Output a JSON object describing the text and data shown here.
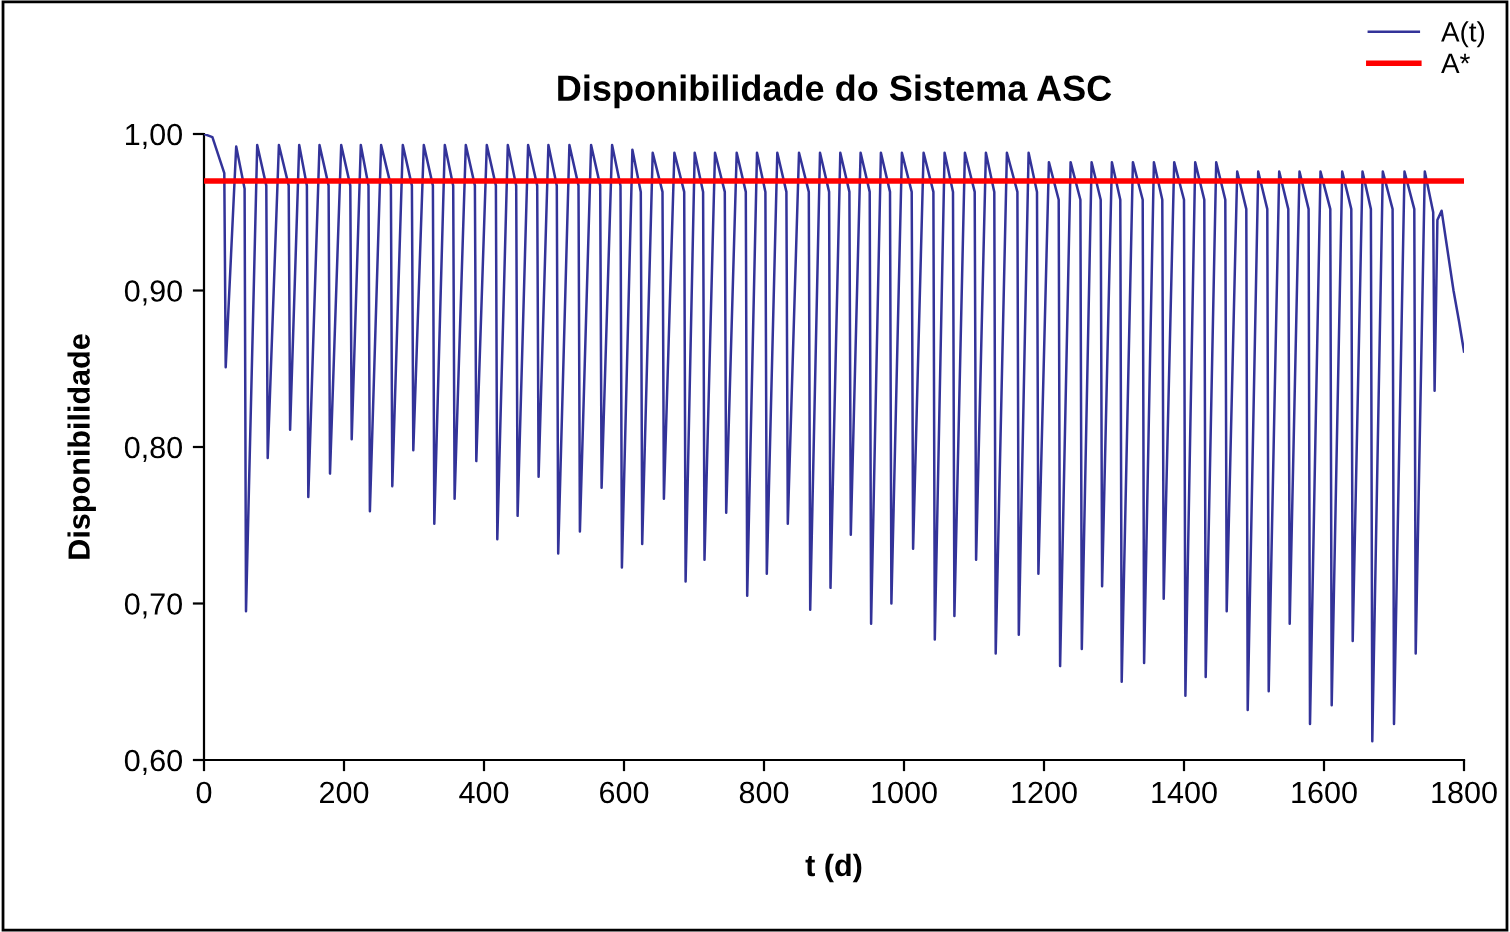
{
  "chart_data": {
    "type": "line",
    "title": "Disponibilidade do Sistema ASC",
    "xlabel": "t (d)",
    "ylabel": "Disponibilidade",
    "xlim": [
      0,
      1800
    ],
    "xticks": [
      0,
      200,
      400,
      600,
      800,
      1000,
      1200,
      1400,
      1600,
      1800
    ],
    "ylim": [
      0.6,
      1.0
    ],
    "yticks": [
      {
        "value": 0.6,
        "label": "0,60"
      },
      {
        "value": 0.7,
        "label": "0,70"
      },
      {
        "value": 0.8,
        "label": "0,80"
      },
      {
        "value": 0.9,
        "label": "0,90"
      },
      {
        "value": 1.0,
        "label": "1,00"
      }
    ],
    "grid": false,
    "legend": "top right",
    "marker": "none",
    "line_style": "solid",
    "series": [
      {
        "name": "A(t)",
        "color": "#333399",
        "x": [
          0,
          12,
          29,
          31,
          46,
          58,
          60,
          76,
          89,
          91,
          107,
          121,
          123,
          136,
          147,
          149,
          165,
          178,
          180,
          196,
          209,
          211,
          224,
          235,
          237,
          253,
          267,
          269,
          284,
          297,
          299,
          314,
          327,
          329,
          344,
          356,
          358,
          374,
          387,
          389,
          404,
          417,
          419,
          434,
          446,
          448,
          463,
          476,
          478,
          492,
          504,
          506,
          522,
          535,
          537,
          553,
          566,
          568,
          583,
          595,
          597,
          612,
          624,
          626,
          641,
          655,
          657,
          672,
          686,
          688,
          701,
          713,
          715,
          730,
          744,
          746,
          761,
          774,
          776,
          790,
          802,
          804,
          819,
          832,
          834,
          850,
          864,
          866,
          880,
          893,
          895,
          909,
          922,
          924,
          938,
          951,
          953,
          967,
          980,
          982,
          997,
          1011,
          1013,
          1028,
          1042,
          1044,
          1058,
          1070,
          1072,
          1087,
          1101,
          1103,
          1117,
          1129,
          1131,
          1147,
          1162,
          1164,
          1178,
          1190,
          1192,
          1207,
          1221,
          1223,
          1238,
          1252,
          1254,
          1268,
          1281,
          1283,
          1297,
          1309,
          1311,
          1327,
          1341,
          1343,
          1357,
          1369,
          1371,
          1386,
          1400,
          1402,
          1416,
          1429,
          1431,
          1446,
          1459,
          1461,
          1476,
          1489,
          1491,
          1506,
          1519,
          1521,
          1536,
          1549,
          1551,
          1565,
          1578,
          1580,
          1595,
          1609,
          1611,
          1626,
          1639,
          1641,
          1655,
          1667,
          1669,
          1684,
          1698,
          1700,
          1715,
          1729,
          1731,
          1744,
          1756,
          1758,
          1762,
          1768,
          1775,
          1785,
          1793,
          1800
        ],
        "values": [
          1.0,
          0.998,
          0.975,
          0.851,
          0.992,
          0.965,
          0.695,
          0.993,
          0.967,
          0.793,
          0.993,
          0.967,
          0.811,
          0.993,
          0.967,
          0.768,
          0.993,
          0.967,
          0.783,
          0.993,
          0.967,
          0.805,
          0.993,
          0.967,
          0.759,
          0.993,
          0.967,
          0.775,
          0.993,
          0.967,
          0.798,
          0.993,
          0.967,
          0.751,
          0.993,
          0.967,
          0.767,
          0.993,
          0.967,
          0.791,
          0.993,
          0.967,
          0.741,
          0.993,
          0.967,
          0.756,
          0.993,
          0.967,
          0.781,
          0.993,
          0.967,
          0.732,
          0.993,
          0.967,
          0.746,
          0.993,
          0.967,
          0.774,
          0.993,
          0.967,
          0.723,
          0.99,
          0.963,
          0.738,
          0.988,
          0.963,
          0.767,
          0.988,
          0.963,
          0.714,
          0.988,
          0.963,
          0.728,
          0.988,
          0.963,
          0.758,
          0.988,
          0.963,
          0.705,
          0.988,
          0.963,
          0.719,
          0.988,
          0.963,
          0.751,
          0.988,
          0.963,
          0.696,
          0.988,
          0.963,
          0.71,
          0.988,
          0.963,
          0.744,
          0.988,
          0.963,
          0.687,
          0.988,
          0.963,
          0.7,
          0.988,
          0.963,
          0.735,
          0.988,
          0.963,
          0.677,
          0.988,
          0.963,
          0.692,
          0.988,
          0.963,
          0.728,
          0.988,
          0.963,
          0.668,
          0.988,
          0.963,
          0.68,
          0.988,
          0.963,
          0.719,
          0.982,
          0.958,
          0.66,
          0.982,
          0.958,
          0.671,
          0.982,
          0.958,
          0.711,
          0.982,
          0.958,
          0.65,
          0.982,
          0.958,
          0.662,
          0.982,
          0.958,
          0.703,
          0.982,
          0.958,
          0.641,
          0.982,
          0.958,
          0.653,
          0.982,
          0.958,
          0.695,
          0.976,
          0.952,
          0.632,
          0.976,
          0.952,
          0.644,
          0.976,
          0.952,
          0.687,
          0.976,
          0.952,
          0.623,
          0.976,
          0.952,
          0.635,
          0.976,
          0.952,
          0.676,
          0.976,
          0.952,
          0.612,
          0.976,
          0.952,
          0.623,
          0.976,
          0.952,
          0.668,
          0.976,
          0.95,
          0.836,
          0.945,
          0.951,
          0.93,
          0.9,
          0.88,
          0.861
        ]
      },
      {
        "name": "A*",
        "color": "#ff0000",
        "x": [
          0,
          1800
        ],
        "values": [
          0.97,
          0.97
        ]
      }
    ]
  }
}
